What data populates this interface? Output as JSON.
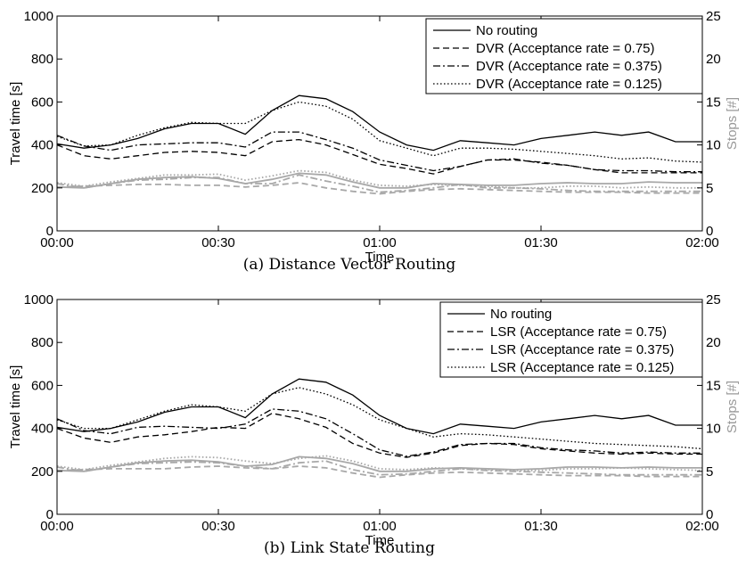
{
  "chart_data": [
    {
      "type": "line",
      "caption": "(a) Distance Vector Routing",
      "xlabel": "Time",
      "ylabel": "Travel time [s]",
      "y2label": "Stops [#]",
      "xticks": [
        "00:00",
        "00:30",
        "01:00",
        "01:30",
        "02:00"
      ],
      "x_minutes": [
        0,
        5,
        10,
        15,
        20,
        25,
        30,
        35,
        40,
        45,
        50,
        55,
        60,
        65,
        70,
        75,
        80,
        85,
        90,
        95,
        100,
        105,
        110,
        115,
        120
      ],
      "ylim": [
        0,
        1000
      ],
      "yticks": [
        0,
        200,
        400,
        600,
        800,
        1000
      ],
      "y2lim": [
        0,
        25
      ],
      "y2ticks": [
        0,
        5,
        10,
        15,
        20,
        25
      ],
      "legend_position": "top-right",
      "series": [
        {
          "name": "No routing",
          "axis": "left",
          "style": "solid",
          "values": [
            405,
            385,
            400,
            430,
            475,
            500,
            500,
            450,
            560,
            630,
            615,
            555,
            460,
            400,
            375,
            420,
            410,
            400,
            430,
            445,
            460,
            445,
            460,
            415,
            415
          ]
        },
        {
          "name": "DVR (Acceptance rate = 0.75)",
          "axis": "left",
          "style": "dashed",
          "values": [
            400,
            350,
            335,
            350,
            365,
            370,
            365,
            350,
            415,
            425,
            400,
            355,
            310,
            290,
            265,
            300,
            330,
            330,
            320,
            305,
            285,
            270,
            270,
            270,
            270
          ]
        },
        {
          "name": "DVR (Acceptance rate = 0.375)",
          "axis": "left",
          "style": "dashdot",
          "values": [
            445,
            395,
            375,
            400,
            405,
            410,
            410,
            390,
            460,
            460,
            425,
            385,
            330,
            305,
            280,
            300,
            330,
            335,
            315,
            305,
            285,
            280,
            280,
            275,
            275
          ]
        },
        {
          "name": "DVR (Acceptance rate = 0.125)",
          "axis": "left",
          "style": "dotted",
          "values": [
            440,
            395,
            400,
            445,
            480,
            505,
            500,
            500,
            560,
            600,
            580,
            520,
            420,
            385,
            350,
            385,
            385,
            380,
            370,
            360,
            350,
            335,
            340,
            325,
            320
          ]
        },
        {
          "name": "",
          "axis": "right",
          "style": "solid",
          "values": [
            5.1,
            5.0,
            5.5,
            6.0,
            6.2,
            6.3,
            6.1,
            5.5,
            6.0,
            6.7,
            6.5,
            5.7,
            5.0,
            5.0,
            5.5,
            5.4,
            5.3,
            5.3,
            5.5,
            5.6,
            5.5,
            5.5,
            5.7,
            5.6,
            5.6
          ]
        },
        {
          "name": "",
          "axis": "right",
          "style": "dashed",
          "values": [
            5.1,
            5.2,
            5.3,
            5.4,
            5.4,
            5.3,
            5.3,
            5.1,
            5.3,
            5.6,
            5.0,
            4.6,
            4.3,
            4.6,
            4.8,
            4.9,
            4.8,
            4.7,
            4.6,
            4.5,
            4.5,
            4.5,
            4.4,
            4.4,
            4.4
          ]
        },
        {
          "name": "",
          "axis": "right",
          "style": "dashdot",
          "values": [
            5.5,
            5.0,
            5.5,
            5.9,
            6.0,
            6.2,
            6.2,
            5.5,
            5.5,
            6.5,
            5.8,
            5.2,
            4.5,
            4.7,
            5.0,
            5.4,
            5.0,
            5.0,
            4.9,
            4.7,
            4.6,
            4.6,
            4.6,
            4.6,
            4.6
          ]
        },
        {
          "name": "",
          "axis": "right",
          "style": "dotted",
          "values": [
            5.6,
            5.2,
            5.7,
            6.1,
            6.5,
            6.5,
            6.6,
            5.9,
            6.4,
            7.0,
            6.8,
            5.9,
            5.3,
            5.2,
            5.4,
            5.3,
            5.2,
            5.0,
            5.0,
            5.2,
            5.2,
            5.0,
            5.1,
            5.0,
            5.0
          ]
        }
      ]
    },
    {
      "type": "line",
      "caption": "(b) Link State Routing",
      "xlabel": "Time",
      "ylabel": "Travel time [s]",
      "y2label": "Stops [#]",
      "xticks": [
        "00:00",
        "00:30",
        "01:00",
        "01:30",
        "02:00"
      ],
      "x_minutes": [
        0,
        5,
        10,
        15,
        20,
        25,
        30,
        35,
        40,
        45,
        50,
        55,
        60,
        65,
        70,
        75,
        80,
        85,
        90,
        95,
        100,
        105,
        110,
        115,
        120
      ],
      "ylim": [
        0,
        1000
      ],
      "yticks": [
        0,
        200,
        400,
        600,
        800,
        1000
      ],
      "y2lim": [
        0,
        25
      ],
      "y2ticks": [
        0,
        5,
        10,
        15,
        20,
        25
      ],
      "legend_position": "top-right",
      "series": [
        {
          "name": "No routing",
          "axis": "left",
          "style": "solid",
          "values": [
            405,
            385,
            400,
            430,
            475,
            500,
            500,
            450,
            560,
            630,
            615,
            555,
            460,
            400,
            375,
            420,
            410,
            400,
            430,
            445,
            460,
            445,
            460,
            415,
            415
          ]
        },
        {
          "name": "LSR (Acceptance rate = 0.75)",
          "axis": "left",
          "style": "dashed",
          "values": [
            400,
            355,
            335,
            360,
            370,
            385,
            405,
            400,
            470,
            445,
            405,
            330,
            285,
            265,
            285,
            320,
            330,
            325,
            305,
            295,
            285,
            280,
            285,
            280,
            280
          ]
        },
        {
          "name": "LSR (Acceptance rate = 0.375)",
          "axis": "left",
          "style": "dashdot",
          "values": [
            445,
            390,
            375,
            405,
            410,
            405,
            400,
            420,
            490,
            480,
            445,
            375,
            300,
            270,
            290,
            325,
            330,
            330,
            310,
            300,
            295,
            285,
            290,
            285,
            285
          ]
        },
        {
          "name": "LSR (Acceptance rate = 0.125)",
          "axis": "left",
          "style": "dotted",
          "values": [
            440,
            400,
            400,
            440,
            480,
            510,
            500,
            480,
            560,
            590,
            560,
            510,
            440,
            400,
            360,
            375,
            370,
            360,
            350,
            340,
            330,
            325,
            320,
            315,
            305
          ]
        },
        {
          "name": "",
          "axis": "right",
          "style": "solid",
          "values": [
            5.1,
            5.0,
            5.5,
            6.0,
            6.2,
            6.3,
            6.1,
            5.6,
            5.8,
            6.7,
            6.5,
            5.9,
            5.0,
            5.0,
            5.3,
            5.4,
            5.3,
            5.2,
            5.3,
            5.5,
            5.5,
            5.4,
            5.5,
            5.4,
            5.4
          ]
        },
        {
          "name": "",
          "axis": "right",
          "style": "dashed",
          "values": [
            5.1,
            5.2,
            5.3,
            5.3,
            5.3,
            5.5,
            5.6,
            5.4,
            5.3,
            5.6,
            5.4,
            4.8,
            4.3,
            4.6,
            4.8,
            4.9,
            4.8,
            4.7,
            4.6,
            4.5,
            4.5,
            4.5,
            4.4,
            4.4,
            4.4
          ]
        },
        {
          "name": "",
          "axis": "right",
          "style": "dashdot",
          "values": [
            5.5,
            5.0,
            5.5,
            5.9,
            6.0,
            6.1,
            6.0,
            5.6,
            5.3,
            6.0,
            6.2,
            5.2,
            4.6,
            4.7,
            5.0,
            5.3,
            5.1,
            5.0,
            4.9,
            4.8,
            4.7,
            4.6,
            4.6,
            4.6,
            4.6
          ]
        },
        {
          "name": "",
          "axis": "right",
          "style": "dotted",
          "values": [
            5.6,
            5.2,
            5.7,
            6.1,
            6.5,
            6.7,
            6.6,
            6.2,
            5.9,
            6.5,
            6.8,
            6.2,
            5.3,
            5.2,
            5.4,
            5.3,
            5.2,
            5.1,
            5.1,
            5.3,
            5.3,
            5.4,
            5.3,
            5.2,
            5.1
          ]
        }
      ]
    }
  ]
}
